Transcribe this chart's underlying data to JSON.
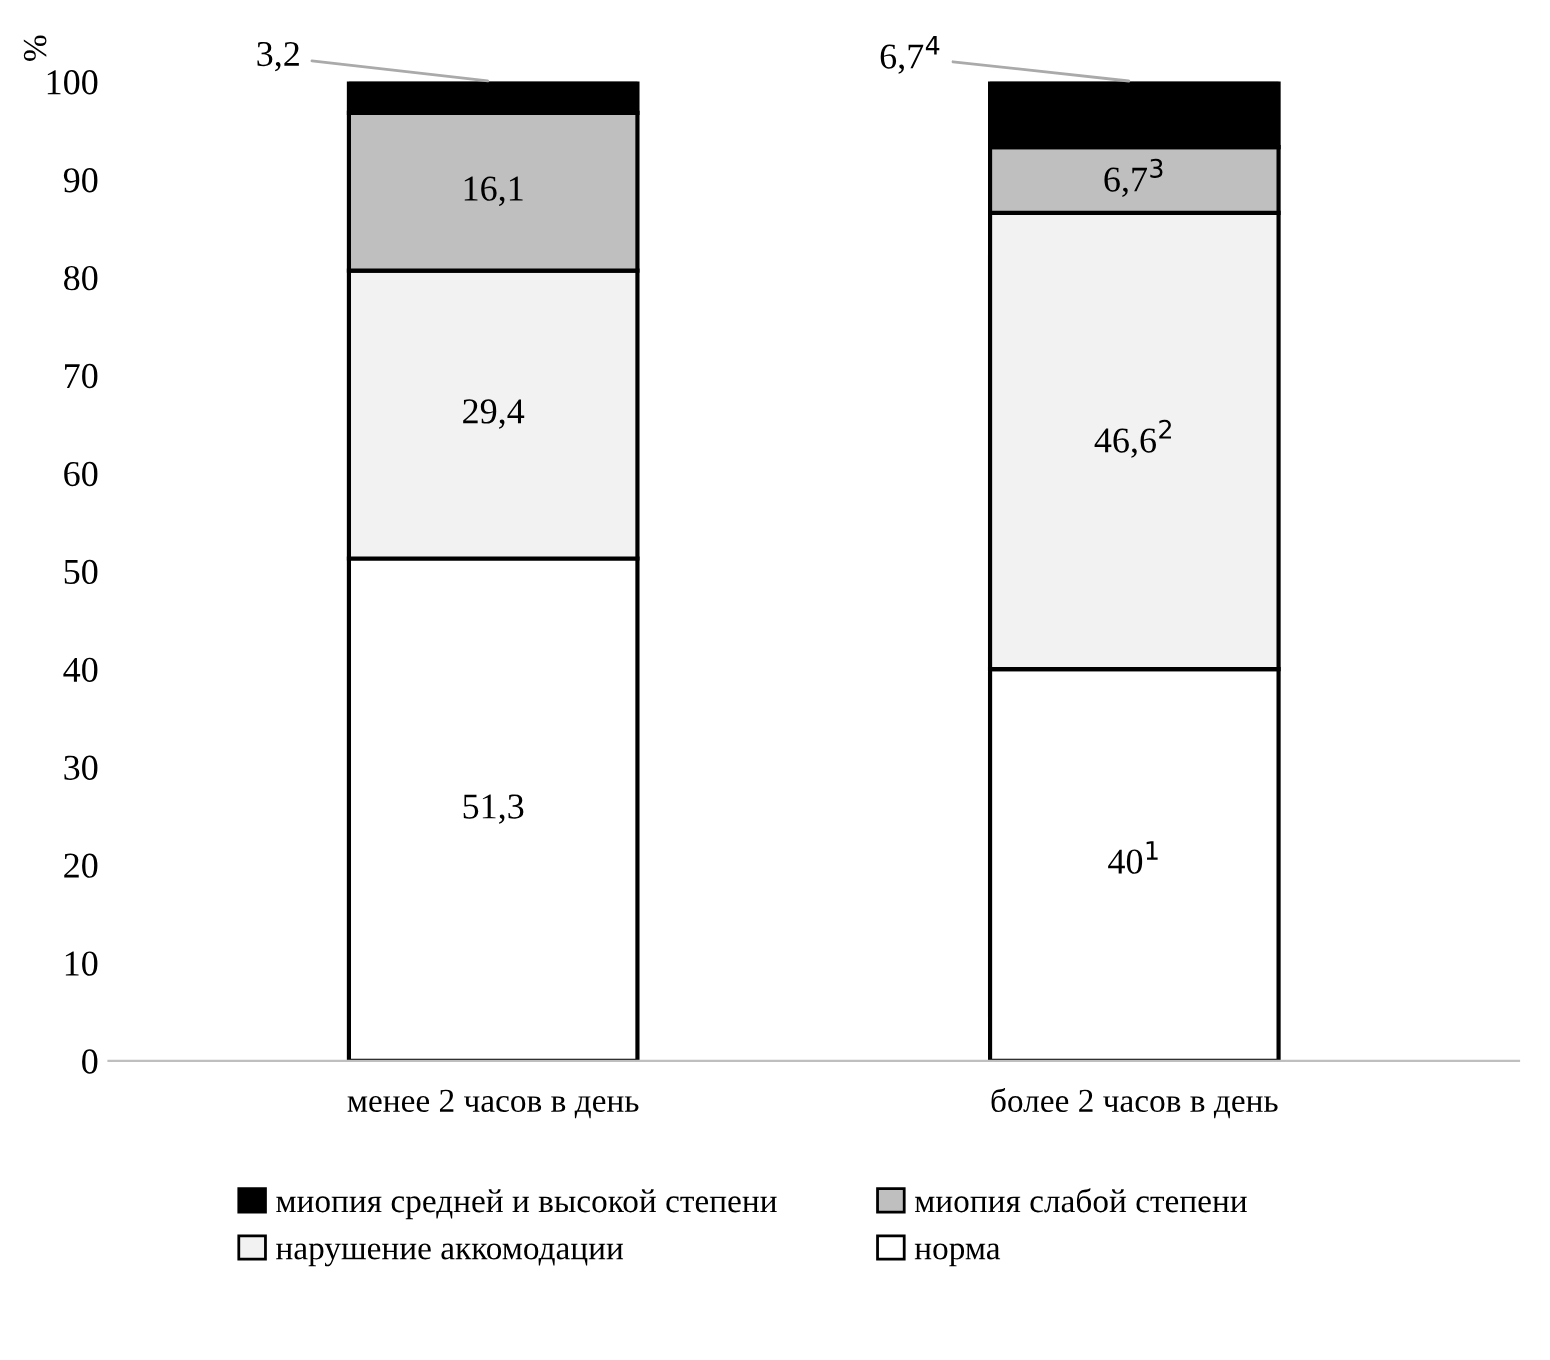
{
  "chart_data": {
    "type": "bar",
    "stacked": true,
    "ylabel": "%",
    "categories": [
      "менее 2 часов в день",
      "более 2 часов в день"
    ],
    "series": [
      {
        "name": "норма",
        "color": "#ffffff",
        "values": [
          51.3,
          40
        ],
        "value_labels": [
          "51,3",
          "40$^{1}$"
        ]
      },
      {
        "name": "нарушение аккомодации",
        "color": "#f2f2f2",
        "values": [
          29.4,
          46.6
        ],
        "value_labels": [
          "29,4",
          "46,6$^{2}$"
        ]
      },
      {
        "name": "миопия слабой степени",
        "color": "#bfbfbf",
        "values": [
          16.1,
          6.7
        ],
        "value_labels": [
          "16,1",
          "6,7$^{3}$"
        ]
      },
      {
        "name": "миопия средней и высокой степени",
        "color": "#000000",
        "values": [
          3.2,
          6.7
        ],
        "value_labels": [
          "3,2",
          "6,7$^{4}$"
        ]
      }
    ],
    "ylim": [
      0,
      100
    ],
    "yticks": [
      0,
      10,
      20,
      30,
      40,
      50,
      60,
      70,
      80,
      90,
      100
    ],
    "grid": false,
    "legend": "bottom"
  }
}
